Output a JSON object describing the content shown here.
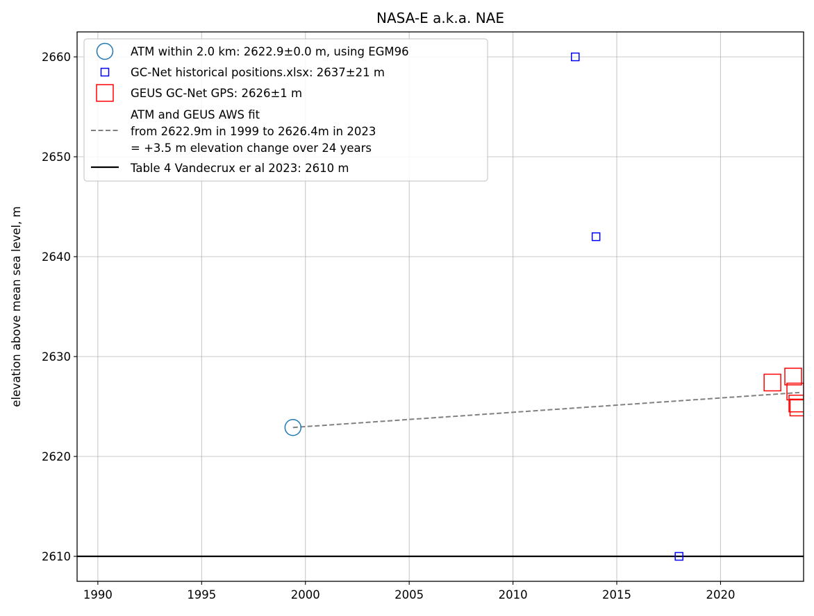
{
  "chart_data": {
    "type": "scatter",
    "title": "NASA-E a.k.a. NAE",
    "xlabel": "",
    "ylabel": "elevation above mean sea level, m",
    "xlim": [
      1989,
      2024
    ],
    "ylim": [
      2607.5,
      2662.5
    ],
    "xticks": [
      1990,
      1995,
      2000,
      2005,
      2010,
      2015,
      2020
    ],
    "yticks": [
      2610,
      2620,
      2630,
      2640,
      2650,
      2660
    ],
    "grid": true,
    "legend_position": "upper-left",
    "series": [
      {
        "name": "ATM within 2.0 km: 2622.9±0.0 m, using EGM96",
        "marker": "circle",
        "color": "#1f77b4",
        "points": [
          {
            "x": 1999.4,
            "y": 2622.9
          }
        ]
      },
      {
        "name": "GC-Net historical positions.xlsx: 2637±21 m",
        "marker": "square-small",
        "color": "#0000ff",
        "points": [
          {
            "x": 2013,
            "y": 2660
          },
          {
            "x": 2014,
            "y": 2642
          },
          {
            "x": 2018,
            "y": 2610
          }
        ]
      },
      {
        "name": "GEUS GC-Net GPS: 2626±1 m",
        "marker": "square-large",
        "color": "#ff0000",
        "points": [
          {
            "x": 2022.5,
            "y": 2627.4
          },
          {
            "x": 2023.5,
            "y": 2628.0
          },
          {
            "x": 2023.6,
            "y": 2626.5
          },
          {
            "x": 2023.7,
            "y": 2625.3
          },
          {
            "x": 2023.75,
            "y": 2624.9
          }
        ]
      },
      {
        "name_lines": [
          "ATM and GEUS AWS fit",
          "from 2622.9m in 1999 to 2626.4m in 2023",
          "= +3.5 m elevation change over 24 years"
        ],
        "line": "dashed",
        "color": "#808080",
        "points": [
          {
            "x": 1999.4,
            "y": 2622.9
          },
          {
            "x": 2023.8,
            "y": 2626.4
          }
        ]
      },
      {
        "name": "Table 4 Vandecrux er al 2023: 2610 m",
        "line": "solid-horizontal",
        "color": "#000000",
        "y": 2610
      }
    ]
  }
}
